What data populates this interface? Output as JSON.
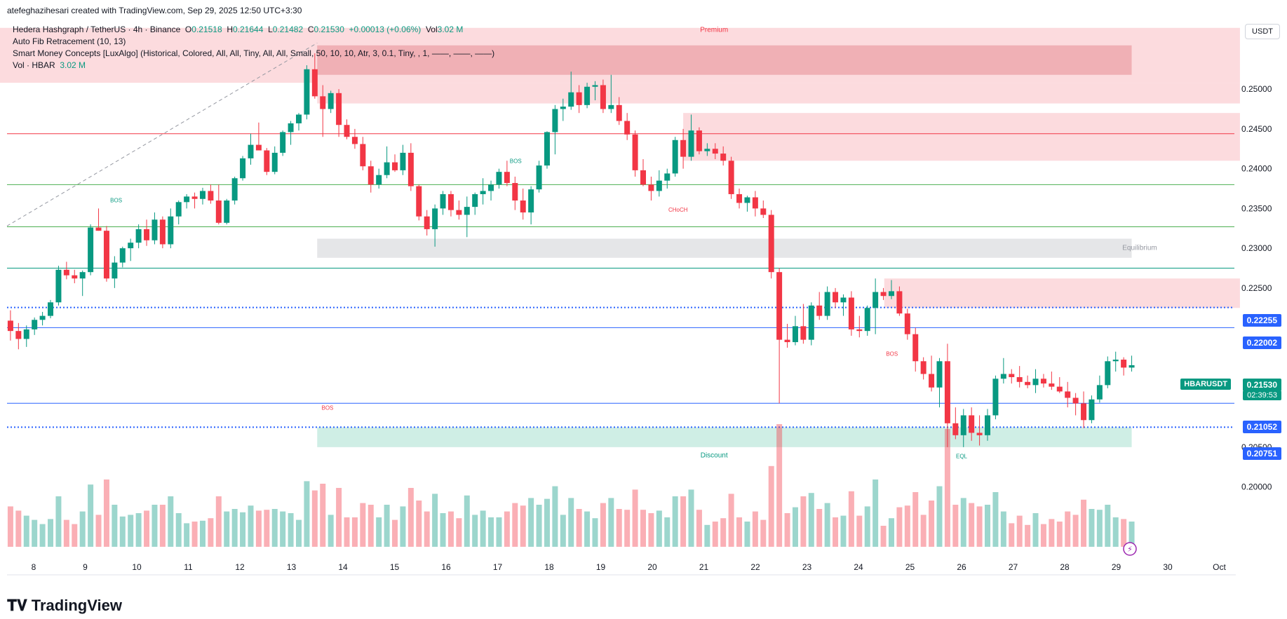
{
  "header": {
    "creator_line": "atefeghazihesari created with TradingView.com, Sep 29, 2025 12:50 UTC+3:30"
  },
  "legend": {
    "symbol_line": "Hedera Hashgraph / TetherUS · 4h · Binance",
    "open_label": "O",
    "open": "0.21518",
    "high_label": "H",
    "high": "0.21644",
    "low_label": "L",
    "low": "0.21482",
    "close_label": "C",
    "close": "0.21530",
    "change": "+0.00013 (+0.06%)",
    "vol_label": "Vol",
    "vol": "3.02 M",
    "indicator_1": "Auto Fib Retracement (10, 13)",
    "indicator_2": "Smart Money Concepts [LuxAlgo] (Historical, Colored, All, All, Tiny, All, All, Small, 50, 10, 10, Atr, 3, 0.1, Tiny, , 1, ——, ——, ——)",
    "indicator_3_label": "Vol · HBAR",
    "indicator_3_value": "3.02 M"
  },
  "currency_button": "USDT",
  "price_tags": {
    "symbol": "HBARUSDT",
    "last": "0.21530",
    "countdown": "02:39:53",
    "level_1": "0.22255",
    "level_2": "0.22002",
    "level_3": "0.21052",
    "level_4": "0.20751"
  },
  "branding": {
    "name": "TradingView"
  },
  "colors": {
    "up": "#089981",
    "down": "#f23645",
    "premium_zone": "#f7c5c9",
    "discount_zone": "#bfe6dc",
    "equilibrium_zone": "#d8d9dc",
    "blue_line": "#2962ff",
    "green_line": "#4caf50",
    "red_line": "#f23645"
  },
  "chart_data": {
    "type": "candlestick",
    "timeframe": "4h",
    "yaxis_ticks": [
      "0.25000",
      "0.24500",
      "0.24000",
      "0.23500",
      "0.23000",
      "0.22500",
      "0.20500",
      "0.20000"
    ],
    "ylim": [
      0.196,
      0.259
    ],
    "xaxis_ticks": [
      "8",
      "9",
      "10",
      "11",
      "12",
      "13",
      "14",
      "15",
      "16",
      "17",
      "18",
      "19",
      "20",
      "21",
      "22",
      "23",
      "24",
      "25",
      "26",
      "27",
      "28",
      "29",
      "30",
      "Oct"
    ],
    "zone_labels": {
      "premium": "Premium",
      "equilibrium": "Equilibrium",
      "discount": "Discount"
    },
    "structure_labels": [
      {
        "text": "BOS",
        "x_day": 9.6,
        "price": 0.2358,
        "color": "up"
      },
      {
        "text": "BOS",
        "x_day": 17.35,
        "price": 0.2407,
        "color": "up"
      },
      {
        "text": "CHoCH",
        "x_day": 20.5,
        "price": 0.2346,
        "color": "down"
      },
      {
        "text": "BOS",
        "x_day": 24.65,
        "price": 0.2165,
        "color": "down"
      },
      {
        "text": "BOS",
        "x_day": 13.7,
        "price": 0.2097,
        "color": "down"
      },
      {
        "text": "EQL",
        "x_day": 26.0,
        "price": 0.2036,
        "color": "up"
      }
    ],
    "horizontal_levels": [
      {
        "price": 0.22255,
        "style": "dotted",
        "color": "blue"
      },
      {
        "price": 0.22002,
        "style": "solid",
        "color": "blue"
      },
      {
        "price": 0.21052,
        "style": "solid",
        "color": "blue"
      },
      {
        "price": 0.20751,
        "style": "dotted",
        "color": "blue"
      },
      {
        "price": 0.2444,
        "style": "solid",
        "color": "red"
      },
      {
        "price": 0.238,
        "style": "solid",
        "color": "green"
      },
      {
        "price": 0.2327,
        "style": "solid",
        "color": "green"
      },
      {
        "price": 0.2275,
        "style": "solid",
        "color": "teal"
      }
    ],
    "zones": [
      {
        "name": "premium",
        "x_from_day": 7.0,
        "x_to_day": 31.4,
        "from": 0.2508,
        "to": 0.2577,
        "color": "premium"
      },
      {
        "name": "premium-ob",
        "x_from_day": 13.5,
        "x_to_day": 29.3,
        "from": 0.2518,
        "to": 0.2555,
        "color": "premium-dark"
      },
      {
        "name": "supply-1",
        "x_from_day": 13.5,
        "x_to_day": 31.4,
        "from": 0.2482,
        "to": 0.2508,
        "color": "premium"
      },
      {
        "name": "supply-2",
        "x_from_day": 20.6,
        "x_to_day": 31.4,
        "from": 0.241,
        "to": 0.247,
        "color": "premium"
      },
      {
        "name": "supply-3",
        "x_from_day": 24.5,
        "x_to_day": 31.4,
        "from": 0.2225,
        "to": 0.2262,
        "color": "premium"
      },
      {
        "name": "equilibrium",
        "x_from_day": 13.5,
        "x_to_day": 29.3,
        "from": 0.2288,
        "to": 0.2312,
        "color": "equilibrium"
      },
      {
        "name": "discount",
        "x_from_day": 13.5,
        "x_to_day": 29.3,
        "from": 0.205,
        "to": 0.2075,
        "color": "discount"
      }
    ],
    "candles_ohlc": [
      [
        0.2209,
        0.2222,
        0.2184,
        0.2196
      ],
      [
        0.2196,
        0.2206,
        0.2173,
        0.2186
      ],
      [
        0.2186,
        0.2203,
        0.2176,
        0.2198
      ],
      [
        0.2198,
        0.2213,
        0.2191,
        0.221
      ],
      [
        0.221,
        0.222,
        0.2203,
        0.2215
      ],
      [
        0.2215,
        0.2235,
        0.2212,
        0.2232
      ],
      [
        0.2232,
        0.2278,
        0.2228,
        0.2273
      ],
      [
        0.2273,
        0.2283,
        0.2261,
        0.2266
      ],
      [
        0.2266,
        0.2273,
        0.2256,
        0.2262
      ],
      [
        0.2262,
        0.2272,
        0.224,
        0.227
      ],
      [
        0.227,
        0.233,
        0.2266,
        0.2326
      ],
      [
        0.2326,
        0.235,
        0.2322,
        0.2322
      ],
      [
        0.2322,
        0.2328,
        0.2258,
        0.2262
      ],
      [
        0.2262,
        0.229,
        0.225,
        0.2282
      ],
      [
        0.2282,
        0.2302,
        0.2276,
        0.23
      ],
      [
        0.23,
        0.2312,
        0.2284,
        0.2307
      ],
      [
        0.2307,
        0.233,
        0.23,
        0.2324
      ],
      [
        0.2324,
        0.2336,
        0.2303,
        0.231
      ],
      [
        0.231,
        0.2345,
        0.2305,
        0.2336
      ],
      [
        0.2336,
        0.234,
        0.23,
        0.2305
      ],
      [
        0.2305,
        0.235,
        0.23,
        0.234
      ],
      [
        0.234,
        0.236,
        0.233,
        0.2358
      ],
      [
        0.2358,
        0.2368,
        0.235,
        0.2365
      ],
      [
        0.2365,
        0.237,
        0.235,
        0.2362
      ],
      [
        0.2362,
        0.2376,
        0.2355,
        0.2372
      ],
      [
        0.2372,
        0.238,
        0.2356,
        0.236
      ],
      [
        0.236,
        0.238,
        0.233,
        0.2332
      ],
      [
        0.2332,
        0.2362,
        0.233,
        0.236
      ],
      [
        0.236,
        0.239,
        0.2355,
        0.2388
      ],
      [
        0.2388,
        0.2416,
        0.2385,
        0.2413
      ],
      [
        0.2413,
        0.2444,
        0.2405,
        0.243
      ],
      [
        0.243,
        0.2458,
        0.2425,
        0.2423
      ],
      [
        0.2423,
        0.2426,
        0.2392,
        0.2396
      ],
      [
        0.2396,
        0.2428,
        0.2393,
        0.242
      ],
      [
        0.242,
        0.2448,
        0.2416,
        0.2446
      ],
      [
        0.2446,
        0.246,
        0.243,
        0.2457
      ],
      [
        0.2457,
        0.247,
        0.2448,
        0.2468
      ],
      [
        0.2468,
        0.253,
        0.2462,
        0.2525
      ],
      [
        0.2525,
        0.2545,
        0.2488,
        0.2491
      ],
      [
        0.2491,
        0.2505,
        0.244,
        0.2475
      ],
      [
        0.2475,
        0.2498,
        0.247,
        0.2495
      ],
      [
        0.2495,
        0.25,
        0.244,
        0.2455
      ],
      [
        0.2455,
        0.2462,
        0.2437,
        0.244
      ],
      [
        0.244,
        0.245,
        0.2425,
        0.2431
      ],
      [
        0.2431,
        0.244,
        0.2398,
        0.2403
      ],
      [
        0.2403,
        0.241,
        0.237,
        0.238
      ],
      [
        0.238,
        0.24,
        0.2375,
        0.2392
      ],
      [
        0.2392,
        0.2428,
        0.2388,
        0.2408
      ],
      [
        0.2408,
        0.2418,
        0.2396,
        0.2398
      ],
      [
        0.2398,
        0.243,
        0.2392,
        0.242
      ],
      [
        0.242,
        0.2432,
        0.2372,
        0.2378
      ],
      [
        0.2378,
        0.238,
        0.2335,
        0.234
      ],
      [
        0.234,
        0.2348,
        0.2316,
        0.2324
      ],
      [
        0.2324,
        0.2355,
        0.2302,
        0.235
      ],
      [
        0.235,
        0.2372,
        0.2342,
        0.2368
      ],
      [
        0.2368,
        0.2372,
        0.234,
        0.2348
      ],
      [
        0.2348,
        0.236,
        0.2336,
        0.2342
      ],
      [
        0.2342,
        0.2365,
        0.2314,
        0.2352
      ],
      [
        0.2352,
        0.237,
        0.2342,
        0.2368
      ],
      [
        0.2368,
        0.2388,
        0.2355,
        0.2372
      ],
      [
        0.2372,
        0.2385,
        0.236,
        0.238
      ],
      [
        0.238,
        0.24,
        0.2375,
        0.2396
      ],
      [
        0.2396,
        0.241,
        0.2378,
        0.2382
      ],
      [
        0.2382,
        0.239,
        0.2348,
        0.236
      ],
      [
        0.236,
        0.2375,
        0.2336,
        0.2345
      ],
      [
        0.2345,
        0.2378,
        0.233,
        0.2374
      ],
      [
        0.2374,
        0.241,
        0.237,
        0.2404
      ],
      [
        0.2404,
        0.2447,
        0.24,
        0.2446
      ],
      [
        0.2446,
        0.248,
        0.2418,
        0.2475
      ],
      [
        0.2475,
        0.2488,
        0.246,
        0.2478
      ],
      [
        0.2478,
        0.2522,
        0.2474,
        0.2496
      ],
      [
        0.2496,
        0.2505,
        0.247,
        0.248
      ],
      [
        0.248,
        0.2508,
        0.2476,
        0.2503
      ],
      [
        0.2503,
        0.251,
        0.2486,
        0.2505
      ],
      [
        0.2505,
        0.2512,
        0.247,
        0.2475
      ],
      [
        0.2475,
        0.2518,
        0.247,
        0.248
      ],
      [
        0.248,
        0.249,
        0.2455,
        0.246
      ],
      [
        0.246,
        0.247,
        0.2436,
        0.2443
      ],
      [
        0.2443,
        0.2448,
        0.239,
        0.2398
      ],
      [
        0.2398,
        0.2412,
        0.2378,
        0.238
      ],
      [
        0.238,
        0.239,
        0.236,
        0.2372
      ],
      [
        0.2372,
        0.2398,
        0.2365,
        0.2385
      ],
      [
        0.2385,
        0.24,
        0.2375,
        0.2394
      ],
      [
        0.2394,
        0.244,
        0.239,
        0.2436
      ],
      [
        0.2436,
        0.245,
        0.24,
        0.2415
      ],
      [
        0.2415,
        0.2468,
        0.241,
        0.2448
      ],
      [
        0.2448,
        0.2452,
        0.2418,
        0.2422
      ],
      [
        0.2422,
        0.2432,
        0.2416,
        0.2425
      ],
      [
        0.2425,
        0.2432,
        0.2412,
        0.2419
      ],
      [
        0.2419,
        0.2428,
        0.2404,
        0.241
      ],
      [
        0.241,
        0.2415,
        0.2362,
        0.2368
      ],
      [
        0.2368,
        0.2375,
        0.235,
        0.2357
      ],
      [
        0.2357,
        0.2366,
        0.2346,
        0.2364
      ],
      [
        0.2364,
        0.2372,
        0.234,
        0.235
      ],
      [
        0.235,
        0.236,
        0.2338,
        0.2342
      ],
      [
        0.2342,
        0.2348,
        0.2262,
        0.227
      ],
      [
        0.227,
        0.2275,
        0.2105,
        0.2185
      ],
      [
        0.2185,
        0.2205,
        0.2175,
        0.2182
      ],
      [
        0.2182,
        0.2215,
        0.2178,
        0.2202
      ],
      [
        0.2202,
        0.223,
        0.218,
        0.2185
      ],
      [
        0.2185,
        0.2232,
        0.2178,
        0.2228
      ],
      [
        0.2228,
        0.2245,
        0.221,
        0.2215
      ],
      [
        0.2215,
        0.2252,
        0.221,
        0.2245
      ],
      [
        0.2245,
        0.225,
        0.2225,
        0.2232
      ],
      [
        0.2232,
        0.2242,
        0.2215,
        0.2238
      ],
      [
        0.2238,
        0.2246,
        0.219,
        0.2198
      ],
      [
        0.2198,
        0.2215,
        0.2188,
        0.2196
      ],
      [
        0.2196,
        0.2228,
        0.219,
        0.2225
      ],
      [
        0.2225,
        0.2262,
        0.2192,
        0.2245
      ],
      [
        0.2245,
        0.225,
        0.2235,
        0.224
      ],
      [
        0.224,
        0.226,
        0.2236,
        0.2246
      ],
      [
        0.2246,
        0.2252,
        0.2215,
        0.2218
      ],
      [
        0.2218,
        0.2224,
        0.2185,
        0.2192
      ],
      [
        0.2192,
        0.22,
        0.2145,
        0.2158
      ],
      [
        0.2158,
        0.2163,
        0.2135,
        0.2142
      ],
      [
        0.2142,
        0.2165,
        0.212,
        0.2125
      ],
      [
        0.2125,
        0.2162,
        0.21,
        0.2158
      ],
      [
        0.2158,
        0.218,
        0.205,
        0.208
      ],
      [
        0.208,
        0.21,
        0.206,
        0.2065
      ],
      [
        0.2065,
        0.2098,
        0.205,
        0.209
      ],
      [
        0.209,
        0.21,
        0.2058,
        0.2068
      ],
      [
        0.2068,
        0.209,
        0.2052,
        0.2065
      ],
      [
        0.2065,
        0.2098,
        0.2058,
        0.209
      ],
      [
        0.209,
        0.214,
        0.2085,
        0.2136
      ],
      [
        0.2136,
        0.2162,
        0.213,
        0.2142
      ],
      [
        0.2142,
        0.2148,
        0.213,
        0.2138
      ],
      [
        0.2138,
        0.2152,
        0.2125,
        0.2132
      ],
      [
        0.2132,
        0.214,
        0.2124,
        0.2128
      ],
      [
        0.2128,
        0.2148,
        0.2118,
        0.2136
      ],
      [
        0.2136,
        0.2142,
        0.2125,
        0.213
      ],
      [
        0.213,
        0.2145,
        0.2122,
        0.2126
      ],
      [
        0.2126,
        0.2138,
        0.2118,
        0.212
      ],
      [
        0.212,
        0.2132,
        0.21,
        0.2112
      ],
      [
        0.2112,
        0.2118,
        0.209,
        0.2105
      ],
      [
        0.2105,
        0.212,
        0.2074,
        0.2084
      ],
      [
        0.2084,
        0.2115,
        0.208,
        0.211
      ],
      [
        0.211,
        0.214,
        0.2106,
        0.2128
      ],
      [
        0.2128,
        0.2164,
        0.2124,
        0.2158
      ],
      [
        0.2158,
        0.217,
        0.2145,
        0.216
      ],
      [
        0.216,
        0.2163,
        0.214,
        0.215
      ],
      [
        0.215,
        0.2165,
        0.2145,
        0.2153
      ]
    ]
  }
}
